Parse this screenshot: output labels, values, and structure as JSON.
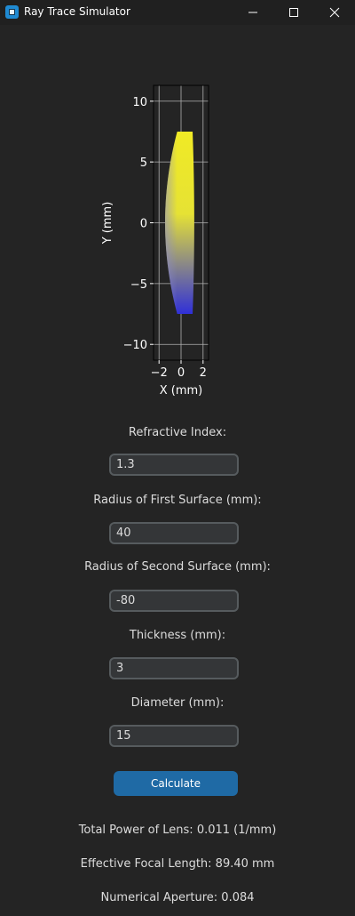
{
  "window": {
    "title": "Ray Trace Simulator",
    "minimize_glyph": "─",
    "icons": [
      "app-icon",
      "minimize-icon",
      "maximize-icon",
      "close-icon"
    ]
  },
  "chart_data": {
    "type": "area",
    "xlabel": "X (mm)",
    "ylabel": "Y (mm)",
    "xlim": [
      -2.5,
      2.5
    ],
    "ylim": [
      -11.3,
      11.3
    ],
    "xticks": [
      "−2",
      "0",
      "2"
    ],
    "yticks": [
      "10",
      "5",
      "0",
      "−5",
      "−10"
    ],
    "xtick_values": [
      -2,
      0,
      2
    ],
    "ytick_values": [
      10,
      5,
      0,
      -5,
      -10
    ],
    "grid": true,
    "lens": {
      "radius_first_surface": 40,
      "radius_second_surface": -80,
      "thickness": 3,
      "diameter": 15
    },
    "colors": {
      "top": "#f0ea25",
      "bottom": "#3030d8",
      "middle": "#e6e234"
    }
  },
  "form": {
    "refractive_index": {
      "label": "Refractive Index:",
      "value": "1.3"
    },
    "radius_first": {
      "label": "Radius of First Surface (mm):",
      "value": "40"
    },
    "radius_second": {
      "label": "Radius of Second Surface (mm):",
      "value": "-80"
    },
    "thickness": {
      "label": "Thickness (mm):",
      "value": "3"
    },
    "diameter": {
      "label": "Diameter (mm):",
      "value": "15"
    },
    "calculate_label": "Calculate"
  },
  "results": {
    "total_power": "Total Power of Lens:  0.011 (1/mm)",
    "focal_length": "Effective Focal Length:  89.40 mm",
    "numerical_aperture": "Numerical Aperture:  0.084"
  }
}
